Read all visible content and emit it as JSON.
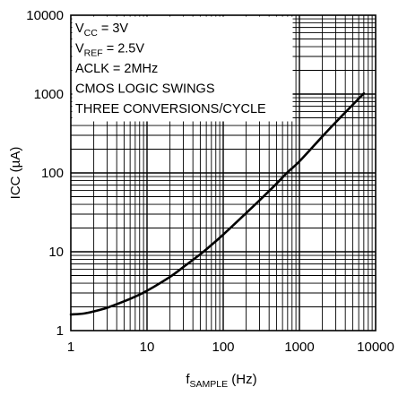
{
  "chart_data": {
    "type": "line",
    "x_scale": "log",
    "y_scale": "log",
    "xlim": [
      1,
      10000
    ],
    "ylim": [
      1,
      10000
    ],
    "grid": true,
    "xlabel": {
      "main": "f",
      "sub": "SAMPLE",
      "unit": " (Hz)"
    },
    "ylabel": "ICC (µA)",
    "x_ticks": [
      {
        "value": 1,
        "label": "1"
      },
      {
        "value": 10,
        "label": "10"
      },
      {
        "value": 100,
        "label": "100"
      },
      {
        "value": 1000,
        "label": "1000"
      },
      {
        "value": 10000,
        "label": "10000"
      }
    ],
    "y_ticks": [
      {
        "value": 1,
        "label": "1"
      },
      {
        "value": 10,
        "label": "10"
      },
      {
        "value": 100,
        "label": "100"
      },
      {
        "value": 1000,
        "label": "1000"
      },
      {
        "value": 10000,
        "label": "10000"
      }
    ],
    "annotations": [
      {
        "main": "V",
        "sub": "CC",
        "rest": " = 3V"
      },
      {
        "main": "V",
        "sub": "REF",
        "rest": " = 2.5V"
      },
      {
        "main": "ACLK = 2MHz",
        "sub": "",
        "rest": ""
      },
      {
        "main": "CMOS LOGIC SWINGS",
        "sub": "",
        "rest": ""
      },
      {
        "main": "THREE CONVERSIONS/CYCLE",
        "sub": "",
        "rest": ""
      }
    ],
    "series": [
      {
        "x": [
          1,
          1.5,
          2,
          3,
          5,
          7,
          10,
          20,
          30,
          50,
          70,
          100,
          200,
          300,
          500,
          700,
          1000,
          2000,
          3000,
          5000,
          7000
        ],
        "y": [
          1.6,
          1.65,
          1.75,
          1.95,
          2.35,
          2.7,
          3.2,
          4.8,
          6.4,
          9.3,
          12.2,
          16.5,
          31,
          45,
          73,
          102,
          140,
          290,
          440,
          730,
          1020
        ]
      }
    ],
    "colors": {
      "line": "#000000",
      "grid": "#000000"
    }
  }
}
